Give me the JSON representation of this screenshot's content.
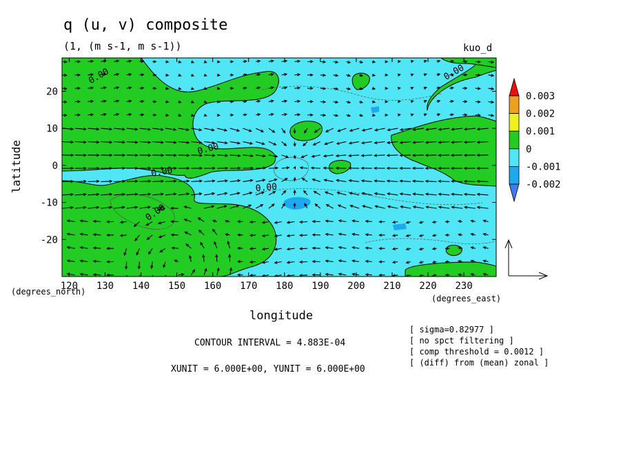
{
  "chart_data": {
    "type": "heatmap",
    "title": "q (u, v) composite",
    "subtitle": "(1, (m s-1, m s-1))",
    "tag": "kuo_d",
    "xlabel": "longitude",
    "ylabel": "latitude",
    "x_unit_label": "(degrees_east)",
    "y_unit_label": "(degrees_north)",
    "xlim": [
      118,
      239
    ],
    "ylim": [
      -30,
      29
    ],
    "x_ticks": [
      120,
      130,
      140,
      150,
      160,
      170,
      180,
      190,
      200,
      210,
      220,
      230
    ],
    "y_ticks": [
      -20,
      -10,
      0,
      10,
      20
    ],
    "colorbar": {
      "levels": [
        -0.003,
        -0.002,
        -0.001,
        0,
        0.001,
        0.002,
        0.003
      ],
      "labels": [
        "0.003",
        "0.002",
        "0.001",
        "0",
        "-0.001",
        "-0.002"
      ],
      "colors": [
        "#3c7bf0",
        "#1ea8f0",
        "#50e6f6",
        "#22cc22",
        "#f0f020",
        "#f0a020",
        "#e81010"
      ]
    },
    "contour_labels": [
      "0.00",
      "0.00",
      "0.00",
      "0.00",
      "0.00",
      "0.00"
    ],
    "contour_interval": "CONTOUR INTERVAL = 4.883E-04",
    "vector_scale": "XUNIT = 6.000E+00, YUNIT = 6.000E+00",
    "notes": [
      "[ sigma=0.82977 ]",
      "[ no spct filtering ]",
      "[ comp threshold = 0.0012 ]",
      "[ (diff) from (mean) zonal ]"
    ]
  }
}
